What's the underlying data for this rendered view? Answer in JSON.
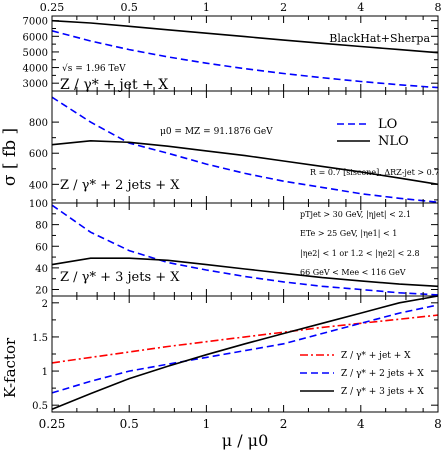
{
  "chart_data": [
    {
      "id": "panel_jet",
      "type": "line",
      "xscale": "log2",
      "xlim": [
        0.25,
        8
      ],
      "ylim": [
        2500,
        7300
      ],
      "yticks": [
        3000,
        4000,
        5000,
        6000,
        7000
      ],
      "labels": {
        "process": "Z / γ* + jet + X",
        "tag": "BlackHat+Sherpa",
        "sqrt_s": "√s = 1.96 TeV"
      },
      "series": [
        {
          "name": "LO",
          "style": "dashed",
          "color": "#0000ff",
          "x": [
            0.25,
            0.3535,
            0.5,
            0.7071,
            1,
            1.4142,
            2,
            2.8284,
            4,
            5.6569,
            8
          ],
          "y": [
            6350,
            5700,
            5150,
            4680,
            4280,
            3930,
            3620,
            3350,
            3110,
            2900,
            2720
          ]
        },
        {
          "name": "NLO",
          "style": "solid",
          "color": "#000000",
          "x": [
            0.25,
            0.3535,
            0.5,
            0.7071,
            1,
            1.4142,
            2,
            2.8284,
            4,
            5.6569,
            8
          ],
          "y": [
            7000,
            6850,
            6640,
            6420,
            6200,
            5980,
            5760,
            5550,
            5350,
            5150,
            4950
          ]
        }
      ]
    },
    {
      "id": "panel_2jets",
      "type": "line",
      "xscale": "log2",
      "xlim": [
        0.25,
        8
      ],
      "ylim": [
        280,
        1000
      ],
      "yticks": [
        400,
        600,
        800
      ],
      "labels": {
        "process": "Z / γ* + 2 jets + X",
        "mu0": "μ0 = MZ = 91.1876 GeV",
        "cone": "R = 0.7 [siscone], ΔRZ-jet > 0.7"
      },
      "legend": {
        "position": "top-right",
        "entries": [
          "LO",
          "NLO"
        ]
      },
      "series": [
        {
          "name": "LO",
          "style": "dashed",
          "color": "#0000ff",
          "x": [
            0.25,
            0.3535,
            0.5,
            0.7071,
            1,
            1.4142,
            2,
            2.8284,
            4,
            5.6569,
            8
          ],
          "y": [
            960,
            800,
            665,
            600,
            530,
            470,
            420,
            380,
            340,
            310,
            285
          ]
        },
        {
          "name": "NLO",
          "style": "solid",
          "color": "#000000",
          "x": [
            0.25,
            0.3535,
            0.5,
            0.7071,
            1,
            1.4142,
            2,
            2.8284,
            4,
            5.6569,
            8
          ],
          "y": [
            655,
            680,
            670,
            645,
            615,
            585,
            550,
            515,
            480,
            440,
            400
          ]
        }
      ]
    },
    {
      "id": "panel_3jets",
      "type": "line",
      "xscale": "log2",
      "xlim": [
        0.25,
        8
      ],
      "ylim": [
        14,
        100
      ],
      "yticks": [
        20,
        40,
        60,
        80,
        100
      ],
      "labels": {
        "process": "Z / γ* + 3 jets + X",
        "cut1": "pTjet > 30 GeV, |ηjet| < 2.1",
        "cut2": "ETe > 25 GeV, |ηe1| < 1",
        "cut3": "|ηe2| < 1 or 1.2 < |ηe2| < 2.8",
        "cut4": "66 GeV < Mee < 116 GeV"
      },
      "series": [
        {
          "name": "LO",
          "style": "dashed",
          "color": "#0000ff",
          "x": [
            0.25,
            0.3535,
            0.5,
            0.7071,
            1,
            1.4142,
            2,
            2.8284,
            4,
            5.6569,
            8
          ],
          "y": [
            98,
            73,
            56,
            45,
            38,
            32,
            27,
            23,
            20,
            17,
            15
          ]
        },
        {
          "name": "NLO",
          "style": "solid",
          "color": "#000000",
          "x": [
            0.25,
            0.3535,
            0.5,
            0.7071,
            1,
            1.4142,
            2,
            2.8284,
            4,
            5.6569,
            8
          ],
          "y": [
            43,
            49,
            49,
            47,
            43,
            39,
            35,
            31,
            28,
            25,
            23
          ]
        }
      ]
    },
    {
      "id": "panel_kfactor",
      "type": "line",
      "xscale": "log2",
      "xlim": [
        0.25,
        8
      ],
      "ylim": [
        0.4,
        2.1
      ],
      "yticks": [
        0.5,
        1,
        1.5,
        2
      ],
      "ylabel": "K-factor",
      "legend": {
        "position": "bottom-right",
        "entries": [
          "Z / γ* + jet + X",
          "Z / γ* + 2 jets + X",
          "Z / γ* + 3 jets + X"
        ]
      },
      "series": [
        {
          "name": "Z / γ* + jet + X",
          "style": "dashdot",
          "color": "#ff0000",
          "x": [
            0.25,
            0.3535,
            0.5,
            0.7071,
            1,
            1.4142,
            2,
            2.8284,
            4,
            5.6569,
            8
          ],
          "y": [
            1.12,
            1.2,
            1.28,
            1.36,
            1.43,
            1.5,
            1.57,
            1.64,
            1.7,
            1.76,
            1.82
          ]
        },
        {
          "name": "Z / γ* + 2 jets + X",
          "style": "dashed",
          "color": "#0000ff",
          "x": [
            0.25,
            0.3535,
            0.5,
            0.7071,
            1,
            1.4142,
            2,
            2.8284,
            4,
            5.6569,
            8
          ],
          "y": [
            0.68,
            0.85,
            1.0,
            1.1,
            1.2,
            1.3,
            1.4,
            1.55,
            1.7,
            1.85,
            1.97
          ]
        },
        {
          "name": "Z / γ* + 3 jets + X",
          "style": "solid",
          "color": "#000000",
          "x": [
            0.25,
            0.3535,
            0.5,
            0.7071,
            1,
            1.4142,
            2,
            2.8284,
            4,
            5.6569,
            8
          ],
          "y": [
            0.44,
            0.67,
            0.89,
            1.07,
            1.24,
            1.4,
            1.55,
            1.7,
            1.85,
            2.0,
            2.12
          ]
        }
      ]
    }
  ],
  "axes": {
    "xticks": [
      0.25,
      0.5,
      1,
      2,
      4,
      8
    ],
    "xtick_labels": [
      "0.25",
      "0.5",
      "1",
      "2",
      "4",
      "8"
    ],
    "xlabel": "μ / μ0",
    "sigma_ylabel": "σ [ fb ]"
  }
}
